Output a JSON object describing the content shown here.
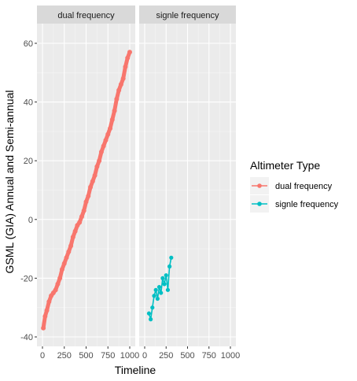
{
  "chart_data": {
    "type": "scatter",
    "facet_by": "Altimeter Type",
    "xlabel": "Timeline",
    "ylabel": "GSML (GIA) Annual and Semi-annual",
    "xlim": [
      0,
      1000
    ],
    "ylim": [
      -40,
      60
    ],
    "x_ticks": [
      0,
      250,
      500,
      750,
      1000
    ],
    "y_ticks": [
      -40,
      -20,
      0,
      20,
      40,
      60
    ],
    "grid": true,
    "connected": true,
    "legend": {
      "title": "Altimeter Type",
      "position": "right",
      "entries": [
        "dual frequency",
        "signle frequency"
      ]
    },
    "panels": [
      {
        "label": "dual frequency",
        "series": "dual frequency"
      },
      {
        "label": "signle frequency",
        "series": "signle frequency"
      }
    ],
    "series": [
      {
        "name": "dual frequency",
        "color": "#F8766D",
        "x": [
          10,
          30,
          50,
          75,
          100,
          125,
          150,
          175,
          200,
          225,
          250,
          275,
          300,
          325,
          350,
          375,
          400,
          425,
          450,
          475,
          500,
          525,
          550,
          575,
          600,
          625,
          650,
          675,
          700,
          725,
          750,
          775,
          800,
          825,
          850,
          875,
          900,
          925,
          950,
          975,
          1000
        ],
        "y": [
          -37,
          -33,
          -31,
          -28,
          -26,
          -25,
          -24,
          -22,
          -20,
          -17,
          -15,
          -13,
          -11,
          -9,
          -6,
          -4,
          -2,
          -1,
          1,
          3,
          6,
          8,
          11,
          13,
          15,
          18,
          20,
          23,
          25,
          27,
          29,
          31,
          34,
          37,
          41,
          44,
          46,
          48,
          52,
          55,
          57
        ]
      },
      {
        "name": "signle frequency",
        "color": "#00BFC4",
        "x": [
          50,
          70,
          90,
          110,
          130,
          150,
          170,
          190,
          210,
          230,
          250,
          270,
          290,
          310
        ],
        "y": [
          -32,
          -34,
          -30,
          -26,
          -24,
          -27,
          -23,
          -25,
          -20,
          -22,
          -19,
          -24,
          -16,
          -13
        ]
      }
    ]
  }
}
